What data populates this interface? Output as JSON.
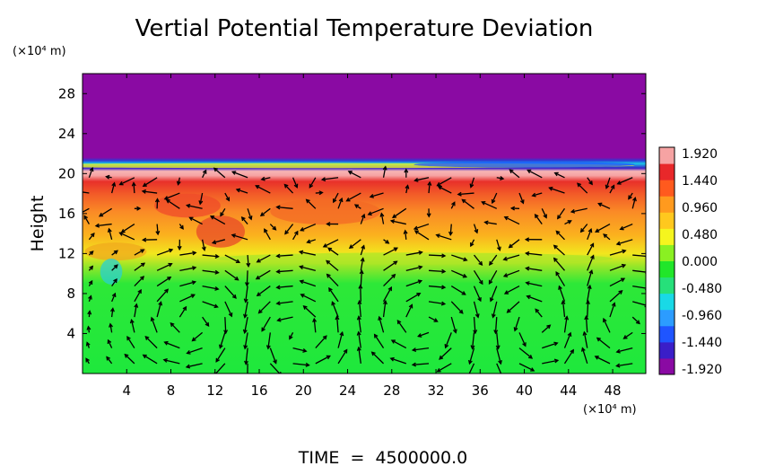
{
  "chart_data": {
    "type": "heatmap",
    "title": "Vertial Potential Temperature Deviation",
    "ylabel": "Height",
    "y_unit": "(×10⁴ m)",
    "x_unit": "(×10⁴ m)",
    "footer": "TIME  =  4500000.0",
    "xlim": [
      0,
      51
    ],
    "ylim": [
      0,
      30
    ],
    "x_ticks": [
      4,
      8,
      12,
      16,
      20,
      24,
      28,
      32,
      36,
      40,
      44,
      48
    ],
    "y_ticks": [
      4,
      8,
      12,
      16,
      20,
      24,
      28
    ],
    "colorbar": {
      "labels": [
        "1.920",
        "1.440",
        "0.960",
        "0.480",
        "0.000",
        "-0.480",
        "-0.960",
        "-1.440",
        "-1.920"
      ],
      "range": [
        -1.92,
        1.92
      ],
      "colors": [
        "#8a0aa3",
        "#3a1ec8",
        "#1f55ff",
        "#2c9cff",
        "#19d9e6",
        "#26e07a",
        "#21e62a",
        "#8af022",
        "#f5f51e",
        "#ffc81e",
        "#ff9a1e",
        "#ff5a1e",
        "#e8282a",
        "#f6a3a3"
      ]
    },
    "field_bands": [
      {
        "y_range": [
          0,
          11
        ],
        "value": 0.0
      },
      {
        "y_range": [
          11,
          15
        ],
        "value": 1.1
      },
      {
        "y_range": [
          15,
          19.5
        ],
        "value": 1.55
      },
      {
        "y_range": [
          19.5,
          20.5
        ],
        "value": 1.92
      },
      {
        "y_range": [
          20.5,
          21.5
        ],
        "value": -1.2
      },
      {
        "y_range": [
          21.5,
          30
        ],
        "value": -1.92
      }
    ],
    "vector_field": "velocity arrows over the full domain (circulation cells below 12)"
  }
}
